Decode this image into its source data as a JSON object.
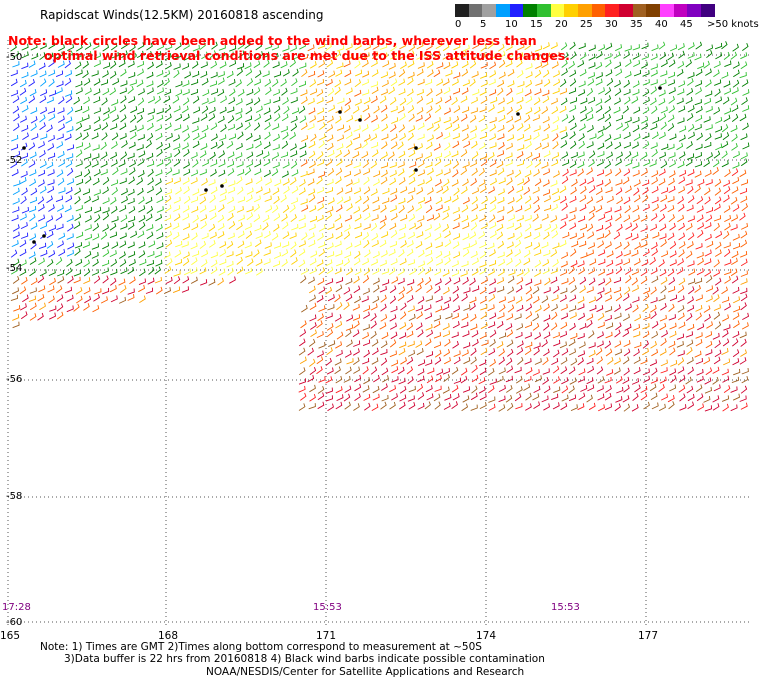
{
  "title": "Rapidscat Winds(12.5KM) 20160818 ascending",
  "note": {
    "line1": "Note: black circles have been added to the wind barbs, wherever less than",
    "line2": "optimal wind retrieval conditions are met due to the ISS attitude changes."
  },
  "color_scale": {
    "labels": [
      "0",
      "5",
      "10",
      "15",
      "20",
      "25",
      "30",
      "35",
      "40",
      "45",
      ">50 knots"
    ],
    "colors": [
      "#202020",
      "#707070",
      "#a0a0a0",
      "#00a0ff",
      "#2020ff",
      "#008000",
      "#30c030",
      "#ffff40",
      "#ffd000",
      "#ffa000",
      "#ff6000",
      "#ff2020",
      "#d00030",
      "#a06020",
      "#804000",
      "#ff40ff",
      "#c000c0",
      "#8000c0",
      "#400080"
    ]
  },
  "lat_labels": [
    "-50",
    "-52",
    "-54",
    "-56",
    "-58",
    "-60"
  ],
  "lon_labels": [
    "165",
    "168",
    "171",
    "174",
    "177"
  ],
  "time_labels": [
    "17:28",
    "15:53",
    "15:53"
  ],
  "footer": {
    "line1": "Note: 1) Times are GMT 2)Times along bottom correspond to measurement at ~50S",
    "line2": "3)Data buffer is 22 hrs from 20160818 4) Black wind barbs indicate possible contamination",
    "line3": "NOAA/NESDIS/Center for Satellite Applications and Research"
  }
}
